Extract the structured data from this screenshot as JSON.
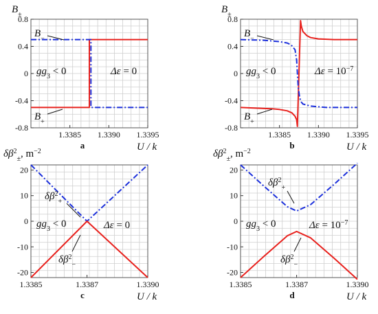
{
  "chart_data": [
    {
      "panel": "a",
      "type": "line",
      "ylabel": "B±",
      "xlabel": "U / k",
      "xlim": [
        1.338,
        1.3395
      ],
      "ylim": [
        -0.8,
        0.8
      ],
      "xticks": [
        "1.3385",
        "1.3390",
        "1.3395"
      ],
      "yticks": [
        "0.8",
        "0.4",
        "0",
        "-0.4",
        "-0.8"
      ],
      "grid": true,
      "series": [
        {
          "name": "B+",
          "color": "#e8201c",
          "style": "solid",
          "x": [
            1.338,
            1.33875,
            1.33875,
            1.3395
          ],
          "y": [
            -0.5,
            -0.5,
            0.5,
            0.5
          ]
        },
        {
          "name": "B−",
          "color": "#1b2fdb",
          "style": "dashdot",
          "x": [
            1.338,
            1.33877,
            1.33877,
            1.3395
          ],
          "y": [
            0.5,
            0.5,
            -0.5,
            -0.5
          ]
        }
      ],
      "annotations": [
        "B−",
        "B+",
        "gg3 < 0",
        "Δε = 0"
      ]
    },
    {
      "panel": "b",
      "type": "line",
      "ylabel": "B±",
      "xlabel": "U / k",
      "xlim": [
        1.338,
        1.3395
      ],
      "ylim": [
        -0.8,
        0.8
      ],
      "xticks": [
        "1.3385",
        "1.3390",
        "1.3395"
      ],
      "yticks": [
        "0.8",
        "0.4",
        "0",
        "-0.4",
        "-0.8"
      ],
      "grid": true,
      "series": [
        {
          "name": "B+",
          "color": "#e8201c",
          "style": "solid",
          "x": [
            1.338,
            1.3382,
            1.3384,
            1.3385,
            1.3386,
            1.33866,
            1.3387,
            1.33872,
            1.33873,
            1.33875,
            1.33877,
            1.33878,
            1.3388,
            1.33885,
            1.3389,
            1.339,
            1.3392,
            1.3395
          ],
          "y": [
            -0.5,
            -0.51,
            -0.52,
            -0.53,
            -0.55,
            -0.58,
            -0.63,
            -0.68,
            -0.78,
            0.0,
            0.78,
            0.7,
            0.62,
            0.56,
            0.53,
            0.51,
            0.5,
            0.5
          ]
        },
        {
          "name": "B−",
          "color": "#1b2fdb",
          "style": "dashdot",
          "x": [
            1.338,
            1.3383,
            1.3385,
            1.3386,
            1.33865,
            1.3387,
            1.33872,
            1.33874,
            1.33876,
            1.33878,
            1.3388,
            1.3389,
            1.3391,
            1.3395
          ],
          "y": [
            0.5,
            0.49,
            0.47,
            0.45,
            0.42,
            0.35,
            0.2,
            -0.2,
            -0.36,
            -0.42,
            -0.45,
            -0.48,
            -0.5,
            -0.5
          ]
        }
      ],
      "annotations": [
        "B−",
        "B+",
        "gg3 < 0",
        "Δε = 10⁻⁷"
      ]
    },
    {
      "panel": "c",
      "type": "line",
      "ylabel": "δβ²±, m⁻²",
      "xlabel": "U / k",
      "xlim": [
        1.3385,
        1.339
      ],
      "ylim": [
        -22,
        22
      ],
      "xticks": [
        "1.3385",
        "1.3387",
        "1.3390"
      ],
      "yticks": [
        "20",
        "10",
        "0",
        "-10",
        "-20"
      ],
      "grid": true,
      "series": [
        {
          "name": "δβ²+",
          "color": "#1b2fdb",
          "style": "dashdot",
          "x": [
            1.3385,
            1.33874,
            1.339
          ],
          "y": [
            22,
            0,
            22
          ]
        },
        {
          "name": "δβ²−",
          "color": "#e8201c",
          "style": "solid",
          "x": [
            1.3385,
            1.33874,
            1.339
          ],
          "y": [
            -22,
            0,
            -22
          ]
        }
      ],
      "annotations": [
        "δβ²+",
        "δβ²−",
        "gg3 < 0",
        "Δε = 0"
      ]
    },
    {
      "panel": "d",
      "type": "line",
      "ylabel": "δβ²±, m⁻²",
      "xlabel": "U / k",
      "xlim": [
        1.3385,
        1.339
      ],
      "ylim": [
        -22,
        22
      ],
      "xticks": [
        "1.3385",
        "1.3387",
        "1.3390"
      ],
      "yticks": [
        "20",
        "10",
        "0",
        "-10",
        "-20"
      ],
      "grid": true,
      "series": [
        {
          "name": "δβ²+",
          "color": "#1b2fdb",
          "style": "dashdot",
          "x": [
            1.3385,
            1.3386,
            1.3387,
            1.33874,
            1.3388,
            1.3389,
            1.339
          ],
          "y": [
            22,
            13.7,
            5.7,
            4,
            6.5,
            14.4,
            22.7
          ]
        },
        {
          "name": "δβ²−",
          "color": "#e8201c",
          "style": "solid",
          "x": [
            1.3385,
            1.3386,
            1.3387,
            1.33874,
            1.3388,
            1.3389,
            1.339
          ],
          "y": [
            -22,
            -13.7,
            -5.7,
            -4,
            -6.5,
            -14.4,
            -22.7
          ]
        }
      ],
      "annotations": [
        "δβ²+",
        "δβ²−",
        "gg3 < 0",
        "Δε = 10⁻⁷"
      ]
    }
  ]
}
